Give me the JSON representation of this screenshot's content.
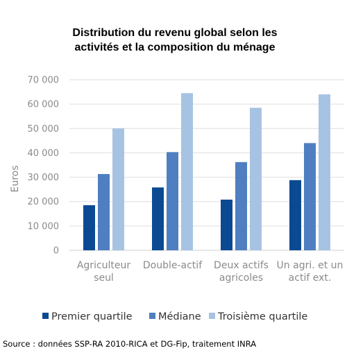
{
  "chart_data": {
    "type": "bar",
    "title_lines": [
      "Distribution du revenu global selon les",
      "activités et la composition du ménage"
    ],
    "ylabel": "Euros",
    "ylim": [
      0,
      70000
    ],
    "yticks": [
      0,
      10000,
      20000,
      30000,
      40000,
      50000,
      60000,
      70000
    ],
    "ytick_labels": [
      "0",
      "10 000",
      "20 000",
      "30 000",
      "40 000",
      "50 000",
      "60 000",
      "70 000"
    ],
    "grid": true,
    "legend_position": "bottom",
    "categories": [
      [
        "Agriculteur",
        "seul"
      ],
      [
        "Double-actif"
      ],
      [
        "Deux actifs",
        "agricoles"
      ],
      [
        "Un agri. et un",
        "actif ext."
      ]
    ],
    "series": [
      {
        "name": "Premier quartile",
        "color": "#0b4a93",
        "values": [
          18500,
          25800,
          20800,
          28800
        ]
      },
      {
        "name": "Médiane",
        "color": "#4f7fc0",
        "values": [
          31300,
          40300,
          36200,
          44000
        ]
      },
      {
        "name": "Troisième quartile",
        "color": "#a7c3e3",
        "values": [
          50000,
          64500,
          58500,
          64000
        ]
      }
    ],
    "source": "Source : données SSP-RA 2010-RICA et DG-Fip, traitement INRA"
  }
}
